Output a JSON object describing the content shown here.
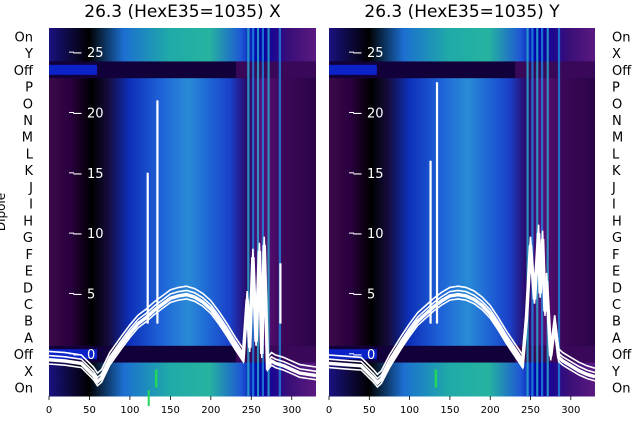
{
  "chart_data": [
    {
      "type": "heatmap",
      "title": "26.3 (HexE35=1035) X",
      "ylabel": "Dipole",
      "row_labels": [
        "On",
        "Y",
        "Off",
        "P",
        "O",
        "N",
        "M",
        "L",
        "K",
        "J",
        "I",
        "H",
        "G",
        "F",
        "E",
        "D",
        "C",
        "B",
        "A",
        "Off",
        "X",
        "On"
      ],
      "xticks": [
        0,
        50,
        100,
        150,
        200,
        250,
        300
      ],
      "xlim": [
        0,
        330
      ],
      "overlay_yticks": [
        0,
        5,
        10,
        15,
        20,
        25
      ],
      "overlay_ylim": [
        -3.5,
        27
      ],
      "overlay_line": {
        "x": [
          0,
          20,
          40,
          55,
          60,
          65,
          75,
          90,
          100,
          110,
          120,
          130,
          140,
          150,
          160,
          170,
          180,
          190,
          200,
          210,
          220,
          230,
          240,
          245,
          248,
          252,
          256,
          260,
          263,
          266,
          270,
          275,
          280,
          285,
          290,
          300,
          310,
          320,
          330
        ],
        "y": [
          -0.5,
          -0.6,
          -0.8,
          -1.8,
          -2.3,
          -2.0,
          -0.6,
          0.8,
          1.7,
          2.5,
          3.0,
          3.6,
          4.1,
          4.6,
          4.8,
          4.9,
          4.7,
          4.3,
          3.7,
          2.8,
          1.8,
          0.7,
          -0.3,
          4.5,
          0.5,
          8.0,
          1.0,
          8.5,
          0.0,
          9.0,
          -1.0,
          -0.6,
          -0.8,
          -0.9,
          -1.0,
          -1.3,
          -1.6,
          -1.7,
          -1.8
        ]
      },
      "spikes": [
        {
          "x": 122,
          "y": 15
        },
        {
          "x": 134,
          "y": 21
        },
        {
          "x": 286,
          "y": 7.5
        }
      ]
    },
    {
      "type": "heatmap",
      "title": "26.3 (HexE35=1035) Y",
      "ylabel": "",
      "row_labels": [
        "On",
        "X",
        "Off",
        "P",
        "O",
        "N",
        "M",
        "L",
        "K",
        "J",
        "I",
        "H",
        "G",
        "F",
        "E",
        "D",
        "C",
        "B",
        "A",
        "Off",
        "Y",
        "On"
      ],
      "xticks": [
        0,
        50,
        100,
        150,
        200,
        250,
        300
      ],
      "xlim": [
        0,
        330
      ],
      "overlay_yticks": [
        0,
        5,
        10,
        15,
        20,
        25
      ],
      "overlay_ylim": [
        -3.5,
        27
      ],
      "overlay_line": {
        "x": [
          0,
          20,
          40,
          55,
          60,
          65,
          75,
          90,
          100,
          110,
          120,
          130,
          140,
          150,
          160,
          170,
          180,
          190,
          200,
          210,
          220,
          230,
          240,
          245,
          250,
          255,
          260,
          262,
          265,
          268,
          270,
          275,
          280,
          285,
          290,
          300,
          310,
          320,
          330
        ],
        "y": [
          -0.8,
          -0.9,
          -1.0,
          -2.0,
          -2.4,
          -2.1,
          -0.8,
          0.8,
          1.8,
          2.7,
          3.3,
          3.9,
          4.4,
          4.8,
          4.9,
          4.8,
          4.5,
          4.0,
          3.3,
          2.3,
          1.2,
          0.2,
          -0.8,
          3.0,
          9.0,
          4.5,
          10.0,
          5.0,
          9.5,
          3.5,
          6.0,
          -0.2,
          2.5,
          -0.3,
          -0.6,
          -1.0,
          -1.4,
          -1.7,
          -1.9
        ]
      },
      "spikes": [
        {
          "x": 126,
          "y": 16
        },
        {
          "x": 134,
          "y": 22.5
        }
      ]
    }
  ]
}
